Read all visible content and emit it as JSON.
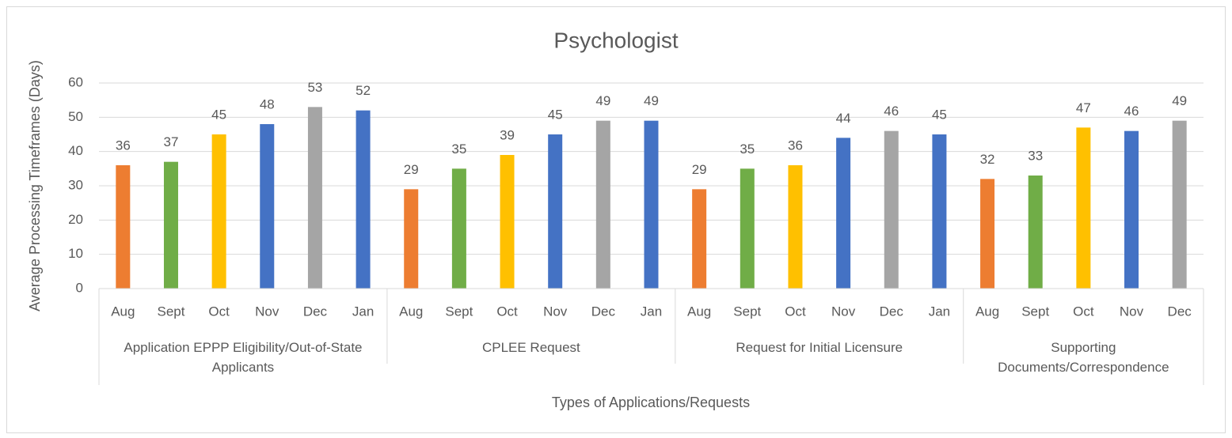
{
  "chart_data": {
    "type": "bar",
    "title": "Psychologist",
    "y_axis_label": "Average Processing Timeframes (Days)",
    "x_axis_label": "Types of Applications/Requests",
    "ylim": [
      0,
      60
    ],
    "yticks": [
      0,
      10,
      20,
      30,
      40,
      50,
      60
    ],
    "grid": true,
    "groups": [
      {
        "name": "Application EPPP Eligibility/Out-of-State Applicants",
        "categories": [
          "Aug",
          "Sept",
          "Oct",
          "Nov",
          "Dec",
          "Jan"
        ],
        "values": [
          36,
          37,
          45,
          48,
          53,
          52
        ],
        "colors": [
          "#ed7d31",
          "#70ad47",
          "#ffc000",
          "#4472c4",
          "#a5a5a5",
          "#4472c4"
        ]
      },
      {
        "name": "CPLEE Request",
        "categories": [
          "Aug",
          "Sept",
          "Oct",
          "Nov",
          "Dec",
          "Jan"
        ],
        "values": [
          29,
          35,
          39,
          45,
          49,
          49
        ],
        "colors": [
          "#ed7d31",
          "#70ad47",
          "#ffc000",
          "#4472c4",
          "#a5a5a5",
          "#4472c4"
        ]
      },
      {
        "name": "Request for Initial Licensure",
        "categories": [
          "Aug",
          "Sept",
          "Oct",
          "Nov",
          "Dec",
          "Jan"
        ],
        "values": [
          29,
          35,
          36,
          44,
          46,
          45
        ],
        "colors": [
          "#ed7d31",
          "#70ad47",
          "#ffc000",
          "#4472c4",
          "#a5a5a5",
          "#4472c4"
        ]
      },
      {
        "name": "Supporting Documents/Correspondence",
        "categories": [
          "Aug",
          "Sept",
          "Oct",
          "Nov",
          "Dec"
        ],
        "values": [
          32,
          33,
          47,
          46,
          49
        ],
        "colors": [
          "#ed7d31",
          "#70ad47",
          "#ffc000",
          "#4472c4",
          "#a5a5a5"
        ]
      }
    ]
  }
}
